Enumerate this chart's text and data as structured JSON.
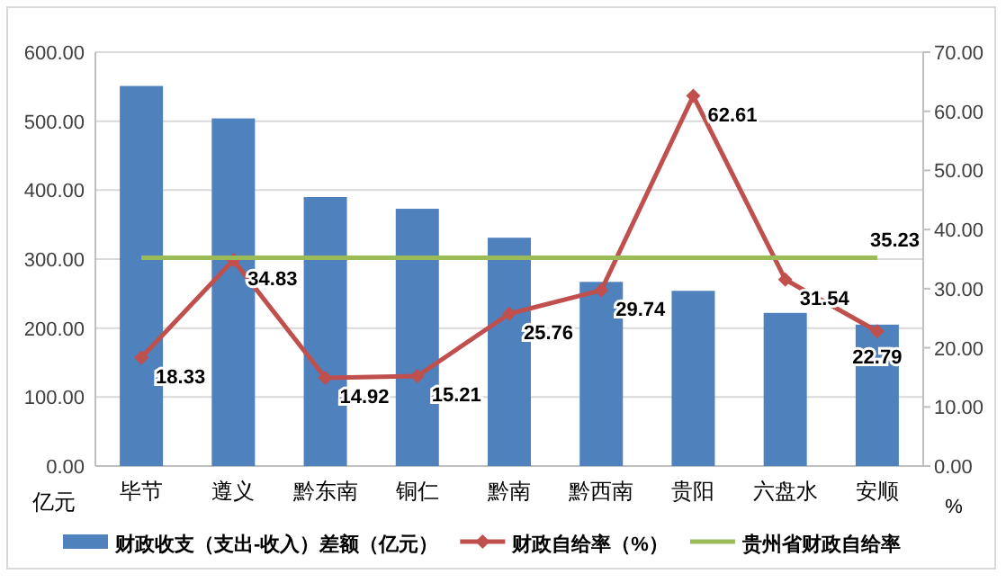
{
  "chart_data": {
    "type": "bar",
    "categories": [
      "毕节",
      "遵义",
      "黔东南",
      "铜仁",
      "黔南",
      "黔西南",
      "贵阳",
      "六盘水",
      "安顺"
    ],
    "ylabel": "亿元",
    "y2label": "%",
    "ylim": [
      0,
      600
    ],
    "yticks": [
      {
        "value": 0,
        "label": "0.00"
      },
      {
        "value": 100,
        "label": "100.00"
      },
      {
        "value": 200,
        "label": "200.00"
      },
      {
        "value": 300,
        "label": "300.00"
      },
      {
        "value": 400,
        "label": "400.00"
      },
      {
        "value": 500,
        "label": "500.00"
      },
      {
        "value": 600,
        "label": "600.00"
      }
    ],
    "y2lim": [
      0,
      70
    ],
    "y2ticks": [
      {
        "value": 0,
        "label": "0.00"
      },
      {
        "value": 10,
        "label": "10.00"
      },
      {
        "value": 20,
        "label": "20.00"
      },
      {
        "value": 30,
        "label": "30.00"
      },
      {
        "value": 40,
        "label": "40.00"
      },
      {
        "value": 50,
        "label": "50.00"
      },
      {
        "value": 60,
        "label": "60.00"
      },
      {
        "value": 70,
        "label": "70.00"
      }
    ],
    "grid": "y",
    "legend": "bottom",
    "series": [
      {
        "name": "财政收支（支出-收入）差额（亿元）",
        "color": "#4f81bd",
        "values": [
          551,
          504,
          390,
          373,
          331,
          267,
          254,
          222,
          205
        ]
      },
      {
        "name": "财政自给率（%）",
        "type": "line",
        "axis": "y2",
        "color": "#c0504d",
        "marker": "diamond",
        "values": [
          18.33,
          34.83,
          14.92,
          15.21,
          25.76,
          29.74,
          62.61,
          31.54,
          22.79
        ],
        "value_labels": [
          "18.33",
          "34.83",
          "14.92",
          "15.21",
          "25.76",
          "29.74",
          "62.61",
          "31.54",
          "22.79"
        ]
      },
      {
        "name": "贵州省财政自给率",
        "type": "line",
        "axis": "y2",
        "color": "#9bbb59",
        "marker": "none",
        "values": [
          35.23,
          35.23,
          35.23,
          35.23,
          35.23,
          35.23,
          35.23,
          35.23,
          35.23
        ],
        "value_labels": [
          null,
          null,
          null,
          null,
          null,
          null,
          null,
          null,
          "35.23"
        ]
      }
    ]
  }
}
